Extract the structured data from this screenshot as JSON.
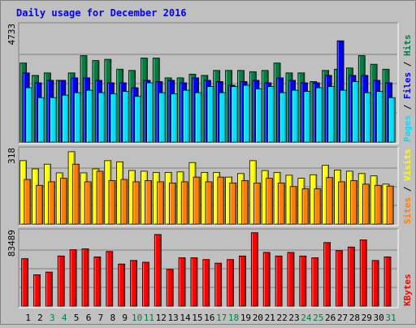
{
  "title": "Daily usage for December 2016",
  "chart_data": [
    {
      "type": "bar",
      "panel": "requests",
      "ymax_label": "4733",
      "ylim": [
        0,
        4733
      ],
      "categories": [
        "1",
        "2",
        "3",
        "4",
        "5",
        "6",
        "7",
        "8",
        "9",
        "10",
        "11",
        "12",
        "13",
        "14",
        "15",
        "16",
        "17",
        "18",
        "19",
        "20",
        "21",
        "22",
        "23",
        "24",
        "25",
        "26",
        "27",
        "28",
        "29",
        "30",
        "31"
      ],
      "weekend_days": [
        "3",
        "4",
        "10",
        "11",
        "17",
        "18",
        "24",
        "25",
        "31"
      ],
      "series": [
        {
          "name": "Hits",
          "color": "#008040",
          "values": [
            3200,
            2700,
            2800,
            2500,
            2800,
            3500,
            3300,
            3350,
            2950,
            2900,
            3400,
            3400,
            2600,
            2600,
            2750,
            2700,
            2900,
            2900,
            2900,
            2850,
            2900,
            3200,
            2800,
            2800,
            2450,
            2900,
            2950,
            3000,
            3500,
            3150,
            2950
          ]
        },
        {
          "name": "Files",
          "color": "#0000ff",
          "values": [
            2800,
            2400,
            2500,
            2500,
            2600,
            2600,
            2500,
            2400,
            2400,
            2200,
            2500,
            2450,
            2500,
            2400,
            2600,
            2500,
            2450,
            2300,
            2450,
            2500,
            2400,
            2600,
            2500,
            2400,
            2400,
            2700,
            4100,
            2700,
            2700,
            2500,
            2400
          ]
        },
        {
          "name": "Pages",
          "color": "#00e0ff",
          "values": [
            2200,
            1800,
            1800,
            1900,
            2000,
            2100,
            2000,
            1950,
            2050,
            1850,
            2400,
            2000,
            1950,
            2100,
            2000,
            2250,
            2000,
            2250,
            2300,
            2150,
            2250,
            2000,
            2100,
            2050,
            2200,
            2250,
            2100,
            2450,
            2000,
            2050,
            1800
          ]
        }
      ],
      "legend": [
        "Pages",
        "Files",
        "Hits"
      ],
      "legend_sep": "/"
    },
    {
      "type": "bar",
      "panel": "visits",
      "ymax_label": "318",
      "ylim": [
        0,
        318
      ],
      "categories": [
        "1",
        "2",
        "3",
        "4",
        "5",
        "6",
        "7",
        "8",
        "9",
        "10",
        "11",
        "12",
        "13",
        "14",
        "15",
        "16",
        "17",
        "18",
        "19",
        "20",
        "21",
        "22",
        "23",
        "24",
        "25",
        "26",
        "27",
        "28",
        "29",
        "30",
        "31"
      ],
      "series": [
        {
          "name": "Visits",
          "color": "#ffff00",
          "values": [
            270,
            235,
            255,
            218,
            308,
            218,
            235,
            270,
            265,
            228,
            225,
            220,
            220,
            222,
            262,
            220,
            220,
            200,
            215,
            270,
            228,
            220,
            208,
            195,
            210,
            250,
            230,
            225,
            215,
            205,
            170
          ]
        },
        {
          "name": "Sites",
          "color": "#ff8000",
          "values": [
            190,
            165,
            180,
            195,
            255,
            180,
            225,
            185,
            190,
            180,
            185,
            180,
            175,
            180,
            200,
            180,
            200,
            175,
            185,
            175,
            195,
            175,
            160,
            150,
            150,
            198,
            180,
            185,
            170,
            165,
            162
          ]
        }
      ],
      "legend": [
        "Sites",
        "Visits"
      ],
      "legend_sep": "/"
    },
    {
      "type": "bar",
      "panel": "kbytes",
      "ymax_label": "83489",
      "ylim": [
        0,
        83489
      ],
      "categories": [
        "1",
        "2",
        "3",
        "4",
        "5",
        "6",
        "7",
        "8",
        "9",
        "10",
        "11",
        "12",
        "13",
        "14",
        "15",
        "16",
        "17",
        "18",
        "19",
        "20",
        "21",
        "22",
        "23",
        "24",
        "25",
        "26",
        "27",
        "28",
        "29",
        "30",
        "31"
      ],
      "series": [
        {
          "name": "KBytes",
          "color": "#ff0000",
          "values": [
            53000,
            35000,
            38000,
            56000,
            63000,
            64000,
            55000,
            61000,
            47000,
            51000,
            49000,
            80000,
            41000,
            54000,
            54000,
            52000,
            48000,
            52000,
            56000,
            82000,
            60000,
            56000,
            60000,
            56000,
            54000,
            71000,
            62000,
            66000,
            74000,
            51000,
            55000
          ]
        }
      ],
      "legend": [
        "KBytes"
      ],
      "legend_sep": ""
    }
  ]
}
